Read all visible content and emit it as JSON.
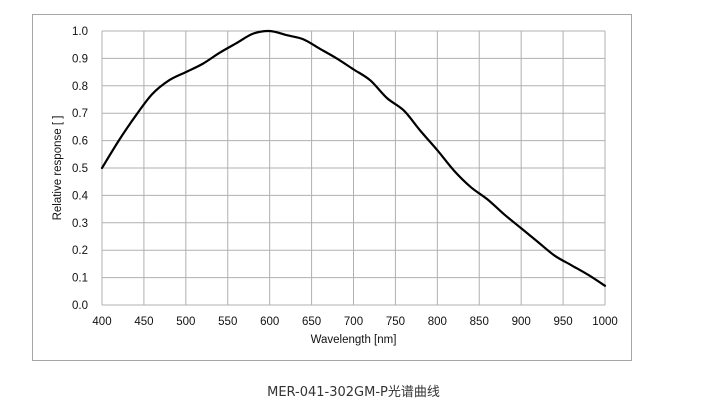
{
  "caption": "MER-041-302GM-P光谱曲线",
  "chart_data": {
    "type": "line",
    "title": "",
    "xlabel": "Wavelength [nm]",
    "ylabel": "Relative response [ ]",
    "xlim": [
      400,
      1000
    ],
    "ylim": [
      0,
      1.0
    ],
    "xticks": [
      400,
      450,
      500,
      550,
      600,
      650,
      700,
      750,
      800,
      850,
      900,
      950,
      1000
    ],
    "yticks": [
      0.0,
      0.1,
      0.2,
      0.3,
      0.4,
      0.5,
      0.6,
      0.7,
      0.8,
      0.9,
      1.0
    ],
    "x_tick_labels": [
      "400",
      "450",
      "500",
      "550",
      "600",
      "650",
      "700",
      "750",
      "800",
      "850",
      "900",
      "950",
      "1000"
    ],
    "y_tick_labels": [
      "0.0",
      "0.1",
      "0.2",
      "0.3",
      "0.4",
      "0.5",
      "0.6",
      "0.7",
      "0.8",
      "0.9",
      "1.0"
    ],
    "grid": true,
    "line_color": "#000000",
    "grid_color": "#b0b0b0",
    "series": [
      {
        "x": [
          400,
          420,
          440,
          460,
          480,
          500,
          520,
          540,
          560,
          580,
          600,
          620,
          640,
          660,
          680,
          700,
          720,
          740,
          760,
          780,
          800,
          820,
          840,
          860,
          880,
          900,
          920,
          940,
          960,
          980,
          1000
        ],
        "values": [
          0.5,
          0.6,
          0.69,
          0.77,
          0.82,
          0.85,
          0.88,
          0.92,
          0.955,
          0.99,
          1.0,
          0.985,
          0.97,
          0.935,
          0.9,
          0.86,
          0.82,
          0.755,
          0.71,
          0.635,
          0.565,
          0.49,
          0.43,
          0.385,
          0.33,
          0.28,
          0.23,
          0.18,
          0.145,
          0.11,
          0.07
        ]
      }
    ]
  }
}
